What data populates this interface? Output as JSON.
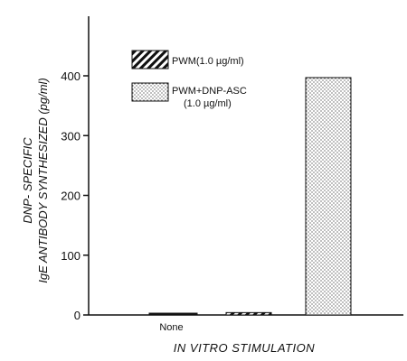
{
  "chart_data": {
    "type": "bar",
    "xlabel": "IN VITRO STIMULATION",
    "ylabel_line1": "DNP- SPECIFIC",
    "ylabel_line2": "IgE ANTIBODY SYNTHESIZED (pg/ml)",
    "ylim": [
      0,
      500
    ],
    "yticks": [
      0,
      100,
      200,
      300,
      400
    ],
    "grid": false,
    "legend_position": "top-left",
    "categories": [
      "None",
      "",
      ""
    ],
    "series": [
      {
        "name": "None",
        "values": [
          3,
          0,
          0
        ],
        "pattern": "solid"
      },
      {
        "name": "PWM (1.0 µg/ml)",
        "values": [
          0,
          4,
          0
        ],
        "pattern": "hatch"
      },
      {
        "name": "PWM + DNP-ASC",
        "values": [
          0,
          0,
          397
        ],
        "pattern": "dots"
      }
    ],
    "bars": [
      {
        "category": "None",
        "value": 3,
        "pattern": "solid"
      },
      {
        "category": "",
        "value": 4,
        "pattern": "hatch"
      },
      {
        "category": "",
        "value": 397,
        "pattern": "dots"
      }
    ],
    "legend": [
      {
        "pattern": "hatch",
        "line1": "PWM(1.0 µg/ml)",
        "line2": ""
      },
      {
        "pattern": "dots",
        "line1": "PWM+DNP-ASC",
        "line2": "(1.0 µg/ml)"
      }
    ]
  }
}
